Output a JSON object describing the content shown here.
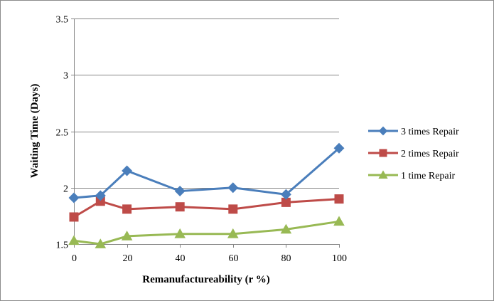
{
  "chart_data": {
    "type": "line",
    "xlabel": "Remanufactureability (r %)",
    "ylabel": "Waiting Time (Days)",
    "x": [
      0,
      10,
      20,
      40,
      60,
      80,
      100
    ],
    "x_ticks": [
      0,
      20,
      40,
      60,
      80,
      100
    ],
    "x_tick_labels": [
      "0",
      "20",
      "40",
      "60",
      "80",
      "100"
    ],
    "y_ticks": [
      1.5,
      2,
      2.5,
      3,
      3.5
    ],
    "y_tick_labels": [
      "1.5",
      "2",
      "2.5",
      "3",
      "3.5"
    ],
    "xlim": [
      0,
      100
    ],
    "ylim": [
      1.5,
      3.5
    ],
    "grid": "horizontal",
    "legend_position": "right",
    "series": [
      {
        "name": "3 times Repair",
        "color": "#4a7ebb",
        "marker": "diamond",
        "values": [
          1.91,
          1.93,
          2.15,
          1.97,
          2.0,
          1.94,
          2.35
        ]
      },
      {
        "name": "2 times Repair",
        "color": "#be4b48",
        "marker": "square",
        "values": [
          1.74,
          1.88,
          1.81,
          1.83,
          1.81,
          1.87,
          1.9
        ]
      },
      {
        "name": "1 time Repair",
        "color": "#98b954",
        "marker": "triangle",
        "values": [
          1.53,
          1.5,
          1.57,
          1.59,
          1.59,
          1.63,
          1.7
        ]
      }
    ]
  }
}
